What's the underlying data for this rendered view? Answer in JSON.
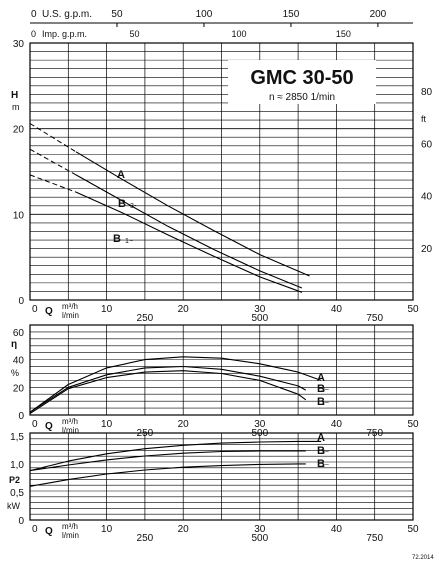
{
  "chart_data": [
    {
      "type": "line",
      "panel": "head",
      "model": "GMC 30-50",
      "speed": "n ≈ 2850 1/min",
      "top_axis_1": {
        "label": "U.S. g.p.m.",
        "zero": "0",
        "ticks": [
          50,
          100,
          150,
          200
        ]
      },
      "top_axis_2": {
        "label": "Imp. g.p.m.",
        "zero": "0",
        "ticks": [
          50,
          100,
          150
        ]
      },
      "bottom_axis_m3h": {
        "label": "m³/h",
        "letter": "Q",
        "zero": "0",
        "ticks": [
          10,
          20,
          30,
          40,
          50
        ]
      },
      "bottom_axis_lmin": {
        "label": "l/min",
        "ticks": [
          250,
          500,
          750
        ]
      },
      "y_left": {
        "label": "H",
        "unit": "m",
        "ticks": [
          0,
          10,
          20,
          30
        ],
        "ylim": [
          0,
          30
        ]
      },
      "y_right": {
        "label": "ft",
        "ticks": [
          20,
          40,
          60,
          80
        ]
      },
      "xlim": [
        0,
        50
      ],
      "grid": true,
      "series": [
        {
          "name": "A",
          "sub": "",
          "x": [
            0,
            6,
            12,
            18,
            24,
            30,
            36.5
          ],
          "y": [
            20.6,
            17.3,
            14.1,
            11.0,
            8.1,
            5.3,
            2.8
          ],
          "dashed_to_x": 6
        },
        {
          "name": "B",
          "sub": "3~",
          "x": [
            0,
            6,
            12,
            18,
            24,
            30,
            35.5
          ],
          "y": [
            17.6,
            14.6,
            11.6,
            8.6,
            5.9,
            3.4,
            1.4
          ],
          "dashed_to_x": 6
        },
        {
          "name": "B",
          "sub": "1~",
          "x": [
            0,
            6,
            12,
            18,
            24,
            30,
            35.5
          ],
          "y": [
            14.6,
            12.6,
            10.2,
            7.6,
            5.1,
            2.7,
            0.9
          ],
          "dashed_to_x": 6
        }
      ]
    },
    {
      "type": "line",
      "panel": "efficiency",
      "y_left": {
        "label": "η",
        "unit": "%",
        "ticks": [
          0,
          20,
          40,
          60
        ],
        "ylim": [
          0,
          65
        ]
      },
      "bottom_axis_m3h": {
        "label": "m³/h",
        "letter": "Q",
        "zero": "0",
        "ticks": [
          10,
          20,
          30,
          40,
          50
        ]
      },
      "bottom_axis_lmin": {
        "label": "l/min",
        "ticks": [
          250,
          500,
          750
        ]
      },
      "xlim": [
        0,
        50
      ],
      "grid": true,
      "series": [
        {
          "name": "A",
          "sub": "",
          "x": [
            0,
            5,
            10,
            15,
            20,
            25,
            30,
            35,
            38
          ],
          "y": [
            2,
            22,
            34,
            40,
            42,
            41,
            37,
            31,
            25
          ]
        },
        {
          "name": "B",
          "sub": "3~",
          "x": [
            0,
            5,
            10,
            15,
            20,
            25,
            30,
            35,
            36
          ],
          "y": [
            2,
            20,
            29,
            34,
            35,
            33,
            28,
            21,
            18
          ]
        },
        {
          "name": "B",
          "sub": "1~",
          "x": [
            0,
            5,
            10,
            15,
            20,
            25,
            30,
            35,
            36
          ],
          "y": [
            1,
            19,
            27,
            31,
            32,
            30,
            25,
            15,
            11
          ]
        }
      ]
    },
    {
      "type": "line",
      "panel": "power",
      "y_left": {
        "label": "P2",
        "unit": "kW",
        "ticks": [
          "0",
          "0,5",
          "1,0",
          "1,5"
        ],
        "tick_values": [
          0,
          0.5,
          1.0,
          1.5
        ],
        "ylim": [
          0,
          1.55
        ]
      },
      "bottom_axis_m3h": {
        "label": "m³/h",
        "letter": "Q",
        "zero": "0",
        "ticks": [
          10,
          20,
          30,
          40,
          50
        ]
      },
      "bottom_axis_lmin": {
        "label": "l/min",
        "ticks": [
          250,
          500,
          750
        ]
      },
      "xlim": [
        0,
        50
      ],
      "grid": true,
      "series": [
        {
          "name": "A",
          "sub": "",
          "x": [
            0,
            5,
            10,
            15,
            20,
            25,
            30,
            35,
            38
          ],
          "y": [
            0.88,
            1.05,
            1.18,
            1.27,
            1.33,
            1.37,
            1.39,
            1.4,
            1.4
          ]
        },
        {
          "name": "B",
          "sub": "3~",
          "x": [
            0,
            5,
            10,
            15,
            20,
            25,
            30,
            35,
            36
          ],
          "y": [
            0.88,
            0.98,
            1.07,
            1.14,
            1.19,
            1.22,
            1.23,
            1.23,
            1.23
          ]
        },
        {
          "name": "B",
          "sub": "1~",
          "x": [
            0,
            5,
            10,
            15,
            20,
            25,
            30,
            35,
            36
          ],
          "y": [
            0.6,
            0.72,
            0.82,
            0.89,
            0.94,
            0.97,
            0.99,
            1.0,
            1.0
          ]
        }
      ]
    }
  ],
  "footer": {
    "code": "72.2014"
  }
}
